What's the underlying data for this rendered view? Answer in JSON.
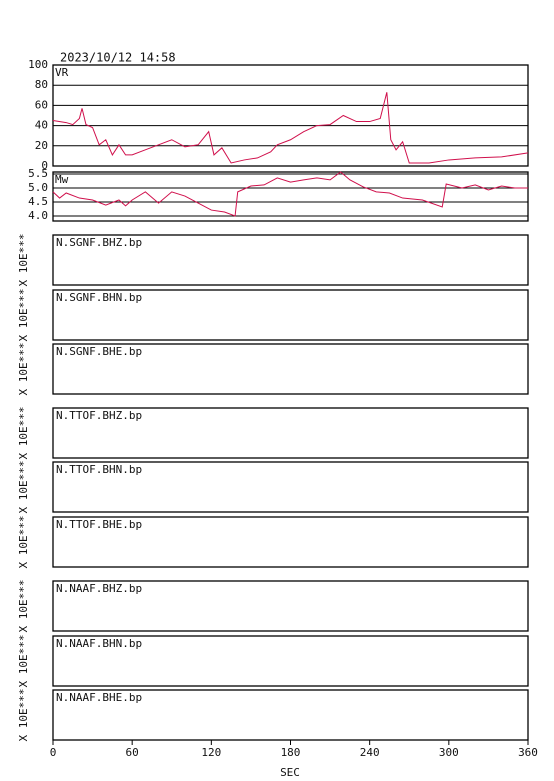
{
  "title": "2023/10/12  14:58",
  "time_axis": {
    "xlim": [
      0,
      360
    ],
    "xticks": [
      0,
      60,
      120,
      180,
      240,
      300,
      360
    ],
    "xlabel": "SEC"
  },
  "amplitude_label": "X 10E***",
  "traces": [
    "N.SGNF.BHZ.bp",
    "N.SGNF.BHN.bp",
    "N.SGNF.BHE.bp",
    "N.TTOF.BHZ.bp",
    "N.TTOF.BHN.bp",
    "N.TTOF.BHE.bp",
    "N.NAAF.BHZ.bp",
    "N.NAAF.BHN.bp",
    "N.NAAF.BHE.bp"
  ],
  "chart_data": [
    {
      "type": "line",
      "label": "VR",
      "color": "#d0104c",
      "grid": true,
      "x": [
        0,
        10,
        15,
        20,
        22,
        25,
        30,
        35,
        40,
        45,
        50,
        55,
        60,
        70,
        80,
        90,
        100,
        110,
        118,
        122,
        128,
        135,
        145,
        155,
        165,
        170,
        180,
        190,
        200,
        210,
        220,
        230,
        240,
        248,
        253,
        256,
        260,
        265,
        270,
        285,
        300,
        320,
        340,
        360
      ],
      "values": [
        45,
        43,
        41,
        47,
        57,
        41,
        38,
        21,
        26,
        11,
        21,
        11,
        11,
        16,
        21,
        26,
        19,
        21,
        34,
        11,
        18,
        3,
        6,
        8,
        14,
        21,
        26,
        34,
        40,
        41,
        50,
        44,
        44,
        47,
        73,
        26,
        16,
        24,
        3,
        3,
        6,
        8,
        9,
        13
      ],
      "ylim": [
        0,
        100
      ],
      "yticks": [
        0,
        20,
        40,
        60,
        80,
        100
      ]
    },
    {
      "type": "line",
      "label": "Mw",
      "color": "#d0104c",
      "grid": true,
      "x": [
        0,
        5,
        10,
        20,
        30,
        40,
        50,
        55,
        60,
        70,
        80,
        90,
        100,
        110,
        120,
        130,
        138,
        140,
        150,
        160,
        170,
        180,
        190,
        200,
        210,
        218,
        225,
        235,
        245,
        255,
        265,
        280,
        295,
        298,
        310,
        320,
        330,
        340,
        350,
        360
      ],
      "values": [
        4.86,
        4.64,
        4.82,
        4.64,
        4.57,
        4.39,
        4.57,
        4.36,
        4.57,
        4.86,
        4.46,
        4.86,
        4.71,
        4.46,
        4.21,
        4.14,
        4.0,
        4.86,
        5.07,
        5.11,
        5.36,
        5.21,
        5.29,
        5.36,
        5.29,
        5.57,
        5.29,
        5.04,
        4.86,
        4.82,
        4.64,
        4.57,
        4.32,
        5.14,
        5.0,
        5.11,
        4.93,
        5.07,
        5.0,
        5.0
      ],
      "ylim": [
        3.82,
        5.57
      ],
      "yticks": [
        {
          "value": 4,
          "label": "4.0"
        },
        4.5,
        {
          "value": 5,
          "label": "5.0"
        },
        5.5
      ]
    }
  ]
}
